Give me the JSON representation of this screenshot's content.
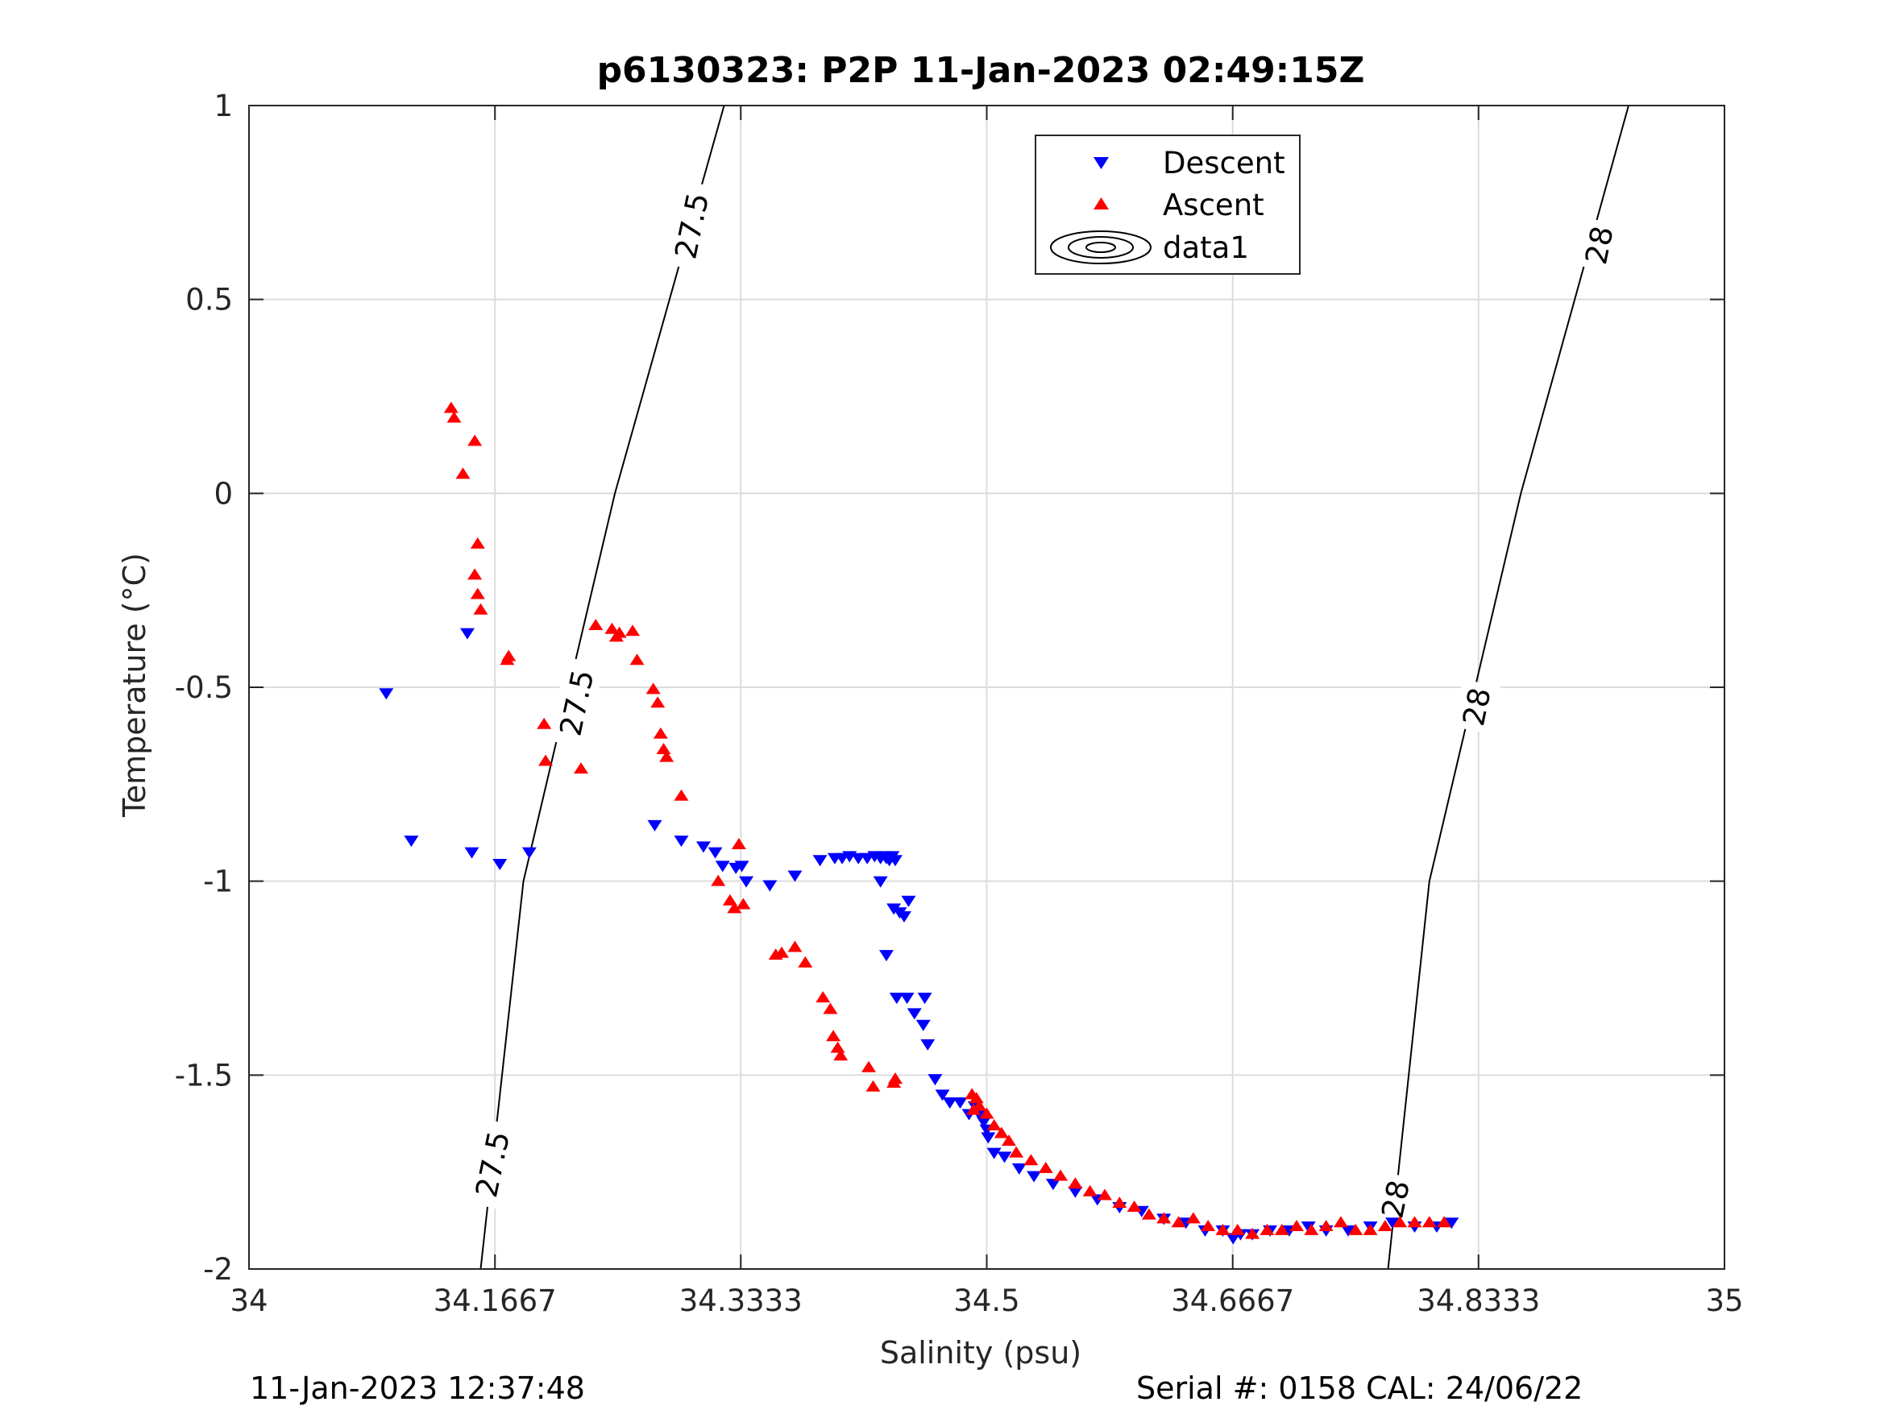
{
  "chart_data": {
    "type": "scatter",
    "title": "p6130323: P2P 11-Jan-2023 02:49:15Z",
    "xlabel": "Salinity (psu)",
    "ylabel": "Temperature (°C)",
    "xlim": [
      34,
      35
    ],
    "ylim": [
      -2,
      1
    ],
    "x_ticks": [
      34,
      34.1667,
      34.3333,
      34.5,
      34.6667,
      34.8333,
      35
    ],
    "x_tick_labels": [
      "34",
      "34.1667",
      "34.3333",
      "34.5",
      "34.6667",
      "34.8333",
      "35"
    ],
    "y_ticks": [
      -2,
      -1.5,
      -1,
      -0.5,
      0,
      0.5,
      1
    ],
    "y_tick_labels": [
      "-2",
      "-1.5",
      "-1",
      "-0.5",
      "0",
      "0.5",
      "1"
    ],
    "grid": true,
    "legend_position": "top-right",
    "series": [
      {
        "name": "Descent",
        "marker": "triangle-down",
        "color": "#0000ff",
        "x": [
          34.093,
          34.11,
          34.148,
          34.151,
          34.17,
          34.19,
          34.275,
          34.293,
          34.308,
          34.316,
          34.321,
          34.33,
          34.334,
          34.337,
          34.353,
          34.37,
          34.387,
          34.397,
          34.402,
          34.407,
          34.413,
          34.419,
          34.424,
          34.428,
          34.431,
          34.432,
          34.434,
          34.436,
          34.438,
          34.428,
          34.432,
          34.437,
          34.441,
          34.444,
          34.447,
          34.439,
          34.446,
          34.451,
          34.457,
          34.458,
          34.46,
          34.465,
          34.47,
          34.475,
          34.482,
          34.488,
          34.492,
          34.495,
          34.498,
          34.5,
          34.501,
          34.505,
          34.512,
          34.522,
          34.532,
          34.545,
          34.56,
          34.575,
          34.59,
          34.605,
          34.62,
          34.635,
          34.648,
          34.66,
          34.667,
          34.672,
          34.68,
          34.692,
          34.705,
          34.718,
          34.73,
          34.745,
          34.76,
          34.775,
          34.79,
          34.805,
          34.815
        ],
        "y": [
          -0.515,
          -0.895,
          -0.36,
          -0.925,
          -0.955,
          -0.925,
          -0.855,
          -0.895,
          -0.91,
          -0.925,
          -0.96,
          -0.965,
          -0.96,
          -1.0,
          -1.01,
          -0.985,
          -0.945,
          -0.94,
          -0.94,
          -0.935,
          -0.94,
          -0.94,
          -0.935,
          -0.94,
          -0.935,
          -0.94,
          -0.945,
          -0.935,
          -0.945,
          -1.0,
          -1.19,
          -1.07,
          -1.08,
          -1.09,
          -1.05,
          -1.3,
          -1.3,
          -1.34,
          -1.37,
          -1.3,
          -1.42,
          -1.51,
          -1.55,
          -1.57,
          -1.57,
          -1.6,
          -1.58,
          -1.6,
          -1.62,
          -1.64,
          -1.66,
          -1.7,
          -1.71,
          -1.74,
          -1.76,
          -1.78,
          -1.8,
          -1.82,
          -1.84,
          -1.85,
          -1.87,
          -1.88,
          -1.9,
          -1.9,
          -1.92,
          -1.91,
          -1.91,
          -1.9,
          -1.9,
          -1.89,
          -1.9,
          -1.9,
          -1.89,
          -1.88,
          -1.89,
          -1.89,
          -1.88
        ]
      },
      {
        "name": "Ascent",
        "marker": "triangle-up",
        "color": "#ff0000",
        "x": [
          34.137,
          34.139,
          34.145,
          34.153,
          34.155,
          34.153,
          34.155,
          34.157,
          34.175,
          34.176,
          34.2,
          34.201,
          34.225,
          34.235,
          34.246,
          34.249,
          34.251,
          34.26,
          34.263,
          34.274,
          34.277,
          34.279,
          34.281,
          34.283,
          34.293,
          34.318,
          34.326,
          34.329,
          34.332,
          34.335,
          34.357,
          34.361,
          34.37,
          34.377,
          34.389,
          34.394,
          34.396,
          34.399,
          34.401,
          34.42,
          34.423,
          34.437,
          34.438,
          34.438,
          34.49,
          34.491,
          34.493,
          34.495,
          34.5,
          34.505,
          34.51,
          34.515,
          34.52,
          34.53,
          34.54,
          34.55,
          34.56,
          34.57,
          34.58,
          34.59,
          34.6,
          34.61,
          34.62,
          34.63,
          34.64,
          34.65,
          34.66,
          34.67,
          34.68,
          34.69,
          34.7,
          34.71,
          34.72,
          34.73,
          34.74,
          34.75,
          34.76,
          34.77,
          34.78,
          34.79,
          34.8,
          34.81
        ],
        "y": [
          0.22,
          0.195,
          0.05,
          0.135,
          -0.13,
          -0.21,
          -0.26,
          -0.3,
          -0.43,
          -0.42,
          -0.595,
          -0.69,
          -0.71,
          -0.34,
          -0.35,
          -0.37,
          -0.36,
          -0.355,
          -0.43,
          -0.505,
          -0.54,
          -0.62,
          -0.66,
          -0.68,
          -0.78,
          -1.0,
          -1.05,
          -1.07,
          -0.905,
          -1.06,
          -1.19,
          -1.185,
          -1.17,
          -1.21,
          -1.3,
          -1.33,
          -1.4,
          -1.43,
          -1.45,
          -1.48,
          -1.53,
          -1.52,
          -1.51,
          -1.51,
          -1.55,
          -1.59,
          -1.56,
          -1.58,
          -1.6,
          -1.63,
          -1.65,
          -1.67,
          -1.7,
          -1.72,
          -1.74,
          -1.76,
          -1.78,
          -1.8,
          -1.81,
          -1.83,
          -1.84,
          -1.86,
          -1.87,
          -1.88,
          -1.87,
          -1.89,
          -1.9,
          -1.9,
          -1.91,
          -1.9,
          -1.9,
          -1.89,
          -1.9,
          -1.89,
          -1.88,
          -1.9,
          -1.9,
          -1.89,
          -1.88,
          -1.88,
          -1.88,
          -1.88
        ]
      },
      {
        "name": "data1",
        "marker": "contour",
        "color": "#000000",
        "contours": [
          {
            "level": "27.5",
            "path": [
              [
                34.157,
                -2.0
              ],
              [
                34.186,
                -1.0
              ],
              [
                34.248,
                0.0
              ],
              [
                34.322,
                1.0
              ]
            ],
            "labels": [
              {
                "x": 34.165,
                "y": -1.73,
                "text": "27.5"
              },
              {
                "x": 34.222,
                "y": -0.54,
                "text": "27.5"
              },
              {
                "x": 34.3,
                "y": 0.69,
                "text": "27.5"
              }
            ]
          },
          {
            "level": "28",
            "path": [
              [
                34.772,
                -2.0
              ],
              [
                34.8,
                -1.0
              ],
              [
                34.862,
                0.0
              ],
              [
                34.935,
                1.0
              ]
            ],
            "labels": [
              {
                "x": 34.777,
                "y": -1.82,
                "text": "28"
              },
              {
                "x": 34.832,
                "y": -0.55,
                "text": "28"
              },
              {
                "x": 34.915,
                "y": 0.64,
                "text": "28"
              }
            ]
          }
        ]
      }
    ]
  },
  "footer": {
    "left": "11-Jan-2023 12:37:48",
    "right": "Serial #: 0158  CAL: 24/06/22"
  }
}
